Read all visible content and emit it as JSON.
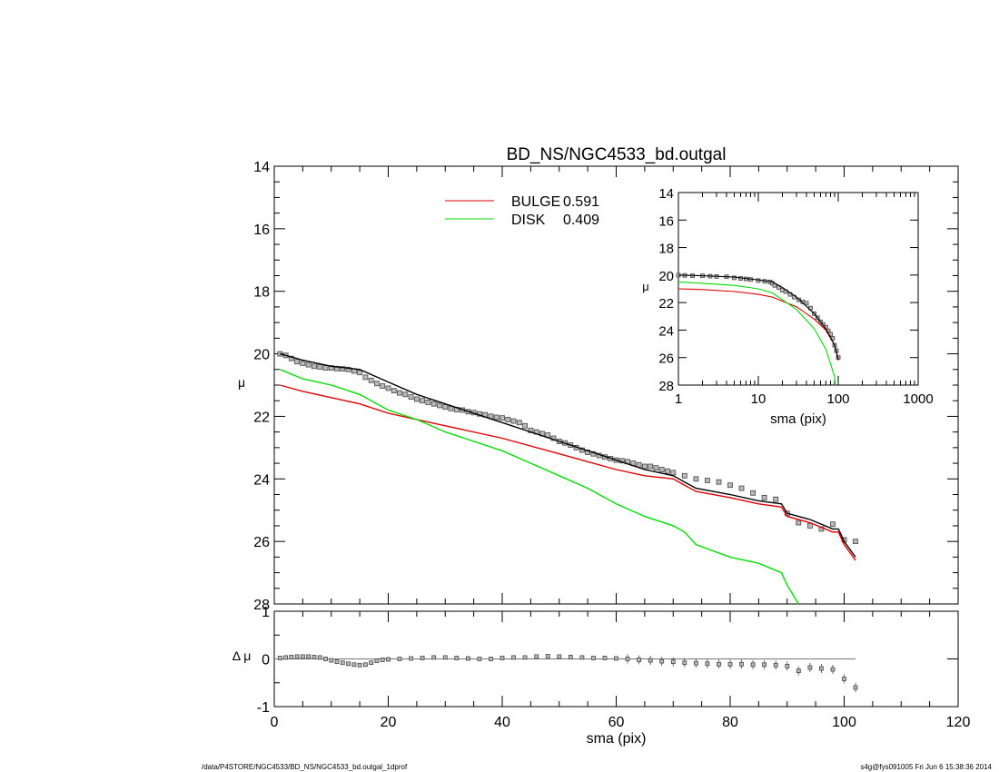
{
  "chart_data": [
    {
      "id": "main",
      "type": "line",
      "title": "BD_NS/NGC4533_bd.outgal",
      "xlabel": "",
      "ylabel": "μ",
      "xlim": [
        0,
        120
      ],
      "ylim": [
        28,
        14
      ],
      "y_inverted": true,
      "yticks": [
        14,
        16,
        18,
        20,
        22,
        24,
        26,
        28
      ],
      "legend": [
        {
          "label": "BULGE",
          "value": "0.591",
          "color": "#e00000"
        },
        {
          "label": "DISK",
          "value": "0.409",
          "color": "#00dd00"
        }
      ],
      "series": [
        {
          "name": "BULGE",
          "color": "#e00000",
          "x": [
            1,
            5,
            10,
            15,
            20,
            25,
            30,
            40,
            50,
            60,
            65,
            70,
            72,
            74,
            80,
            85,
            89,
            90,
            94,
            98,
            99,
            100,
            102
          ],
          "y": [
            21.0,
            21.2,
            21.4,
            21.6,
            21.9,
            22.1,
            22.3,
            22.7,
            23.2,
            23.7,
            23.9,
            24.0,
            24.2,
            24.4,
            24.6,
            24.8,
            24.9,
            25.2,
            25.4,
            25.7,
            25.7,
            26.1,
            26.6
          ]
        },
        {
          "name": "DISK",
          "color": "#00dd00",
          "x": [
            1,
            5,
            10,
            15,
            20,
            25,
            30,
            40,
            50,
            55,
            60,
            65,
            70,
            72,
            74,
            80,
            85,
            89,
            90,
            92
          ],
          "y": [
            20.5,
            20.8,
            21.0,
            21.3,
            21.8,
            22.1,
            22.5,
            23.1,
            23.9,
            24.3,
            24.8,
            25.2,
            25.5,
            25.7,
            26.1,
            26.5,
            26.7,
            27.0,
            27.4,
            28.0
          ]
        },
        {
          "name": "MODEL",
          "color": "#000000",
          "x": [
            1,
            5,
            10,
            15,
            20,
            25,
            30,
            40,
            50,
            60,
            65,
            70,
            72,
            74,
            80,
            85,
            89,
            90,
            94,
            98,
            99,
            100,
            102
          ],
          "y": [
            20.0,
            20.2,
            20.4,
            20.5,
            20.9,
            21.3,
            21.6,
            22.2,
            22.8,
            23.4,
            23.7,
            23.9,
            24.1,
            24.3,
            24.5,
            24.7,
            24.8,
            25.1,
            25.3,
            25.6,
            25.6,
            26.0,
            26.5
          ]
        },
        {
          "name": "DATA",
          "color": "#555555",
          "type": "scatter",
          "x": [
            1,
            2,
            3,
            4,
            5,
            6,
            7,
            8,
            9,
            10,
            11,
            12,
            13,
            14,
            15,
            16,
            17,
            18,
            19,
            20,
            21,
            22,
            23,
            24,
            25,
            26,
            27,
            28,
            29,
            30,
            31,
            32,
            33,
            34,
            35,
            36,
            37,
            38,
            39,
            40,
            41,
            42,
            43,
            44,
            45,
            46,
            47,
            48,
            49,
            50,
            51,
            52,
            53,
            54,
            55,
            56,
            57,
            58,
            59,
            60,
            61,
            62,
            63,
            64,
            65,
            66,
            67,
            68,
            69,
            70,
            72,
            74,
            76,
            78,
            80,
            82,
            84,
            86,
            88,
            90,
            92,
            94,
            96,
            98,
            100,
            102
          ],
          "y": [
            20.0,
            20.05,
            20.15,
            20.25,
            20.3,
            20.35,
            20.4,
            20.42,
            20.45,
            20.45,
            20.47,
            20.48,
            20.5,
            20.55,
            20.6,
            20.75,
            20.85,
            20.95,
            21.03,
            21.1,
            21.18,
            21.25,
            21.3,
            21.38,
            21.45,
            21.5,
            21.55,
            21.6,
            21.65,
            21.7,
            21.75,
            21.78,
            21.8,
            21.85,
            21.88,
            21.92,
            21.95,
            22.0,
            22.03,
            22.05,
            22.1,
            22.15,
            22.2,
            22.3,
            22.45,
            22.5,
            22.55,
            22.6,
            22.7,
            22.8,
            22.85,
            22.92,
            23.0,
            23.08,
            23.15,
            23.2,
            23.25,
            23.3,
            23.35,
            23.4,
            23.42,
            23.45,
            23.5,
            23.55,
            23.6,
            23.6,
            23.65,
            23.7,
            23.75,
            23.8,
            23.9,
            24.0,
            24.05,
            24.1,
            24.2,
            24.3,
            24.45,
            24.6,
            24.65,
            25.1,
            25.4,
            25.5,
            25.6,
            25.45,
            25.95,
            26.0
          ]
        }
      ]
    },
    {
      "id": "residual",
      "type": "scatter",
      "xlabel": "sma (pix)",
      "ylabel": "Δ μ",
      "xlim": [
        0,
        120
      ],
      "ylim": [
        -1,
        1
      ],
      "xticks": [
        0,
        20,
        40,
        60,
        80,
        100,
        120
      ],
      "yticks": [
        1,
        0,
        -1
      ],
      "zero_line_x": [
        0,
        102
      ],
      "series": [
        {
          "name": "residual",
          "color": "#555555",
          "x": [
            1,
            2,
            3,
            4,
            5,
            6,
            7,
            8,
            9,
            10,
            11,
            12,
            13,
            14,
            15,
            16,
            17,
            18,
            19,
            20,
            22,
            24,
            26,
            28,
            30,
            32,
            34,
            36,
            38,
            40,
            42,
            44,
            46,
            48,
            50,
            52,
            54,
            56,
            58,
            60,
            62,
            64,
            66,
            68,
            70,
            72,
            74,
            76,
            78,
            80,
            82,
            84,
            86,
            88,
            90,
            92,
            94,
            96,
            98,
            100,
            102
          ],
          "y": [
            0.02,
            0.03,
            0.04,
            0.05,
            0.05,
            0.05,
            0.04,
            0.03,
            0.0,
            -0.03,
            -0.06,
            -0.08,
            -0.1,
            -0.12,
            -0.13,
            -0.12,
            -0.08,
            -0.04,
            -0.02,
            -0.01,
            0.0,
            0.01,
            0.02,
            0.03,
            0.03,
            0.02,
            0.01,
            0.0,
            0.0,
            0.02,
            0.03,
            0.03,
            0.05,
            0.06,
            0.05,
            0.04,
            0.03,
            0.02,
            0.02,
            0.01,
            0.0,
            -0.02,
            -0.03,
            -0.05,
            -0.06,
            -0.08,
            -0.09,
            -0.1,
            -0.11,
            -0.11,
            -0.11,
            -0.12,
            -0.12,
            -0.13,
            -0.15,
            -0.25,
            -0.18,
            -0.2,
            -0.22,
            -0.42,
            -0.6
          ]
        }
      ]
    },
    {
      "id": "inset",
      "type": "line",
      "xlabel": "sma (pix)",
      "ylabel": "μ",
      "xscale": "log",
      "xlim": [
        1,
        1000
      ],
      "ylim": [
        28,
        14
      ],
      "xticks": [
        1,
        10,
        100,
        1000
      ],
      "yticks": [
        14,
        16,
        18,
        20,
        22,
        24,
        26,
        28
      ],
      "series": [
        {
          "name": "BULGE",
          "color": "#e00000",
          "x": [
            1,
            2,
            5,
            10,
            15,
            20,
            30,
            50,
            70,
            90,
            100
          ],
          "y": [
            21.0,
            21.05,
            21.2,
            21.4,
            21.6,
            21.9,
            22.3,
            23.2,
            24.0,
            25.1,
            26.2
          ]
        },
        {
          "name": "DISK",
          "color": "#00dd00",
          "x": [
            1,
            2,
            5,
            10,
            15,
            20,
            30,
            50,
            70,
            90,
            92
          ],
          "y": [
            20.5,
            20.6,
            20.75,
            21.0,
            21.3,
            21.8,
            22.5,
            23.9,
            25.4,
            27.4,
            28.0
          ]
        },
        {
          "name": "MODEL",
          "color": "#000000",
          "x": [
            1,
            2,
            5,
            10,
            15,
            20,
            30,
            50,
            70,
            90,
            100
          ],
          "y": [
            20.0,
            20.05,
            20.15,
            20.35,
            20.5,
            20.9,
            21.6,
            22.8,
            23.9,
            25.1,
            26.1
          ]
        },
        {
          "name": "DATA",
          "color": "#555555",
          "type": "scatter",
          "x": [
            1,
            1.2,
            1.5,
            2,
            2.5,
            3,
            4,
            5,
            6,
            7,
            8,
            10,
            12,
            14,
            15,
            16,
            18,
            20,
            22,
            25,
            28,
            32,
            36,
            40,
            45,
            50,
            55,
            60,
            65,
            70,
            75,
            80,
            85,
            90,
            95,
            100
          ],
          "y": [
            20.0,
            20.02,
            20.05,
            20.05,
            20.08,
            20.1,
            20.12,
            20.2,
            20.25,
            20.28,
            20.32,
            20.4,
            20.45,
            20.5,
            20.6,
            20.75,
            20.9,
            21.1,
            21.2,
            21.4,
            21.6,
            21.8,
            21.95,
            22.05,
            22.4,
            22.8,
            23.1,
            23.4,
            23.6,
            23.8,
            24.05,
            24.3,
            24.6,
            25.1,
            25.5,
            26.0
          ]
        }
      ]
    }
  ],
  "footer": {
    "path": "/data/P4STORE/NGC4533/BD_NS/NGC4533_bd.outgal_1dprof",
    "stamp": "s4g@fys091005  Fri Jun  6 15:38:36 2014"
  }
}
